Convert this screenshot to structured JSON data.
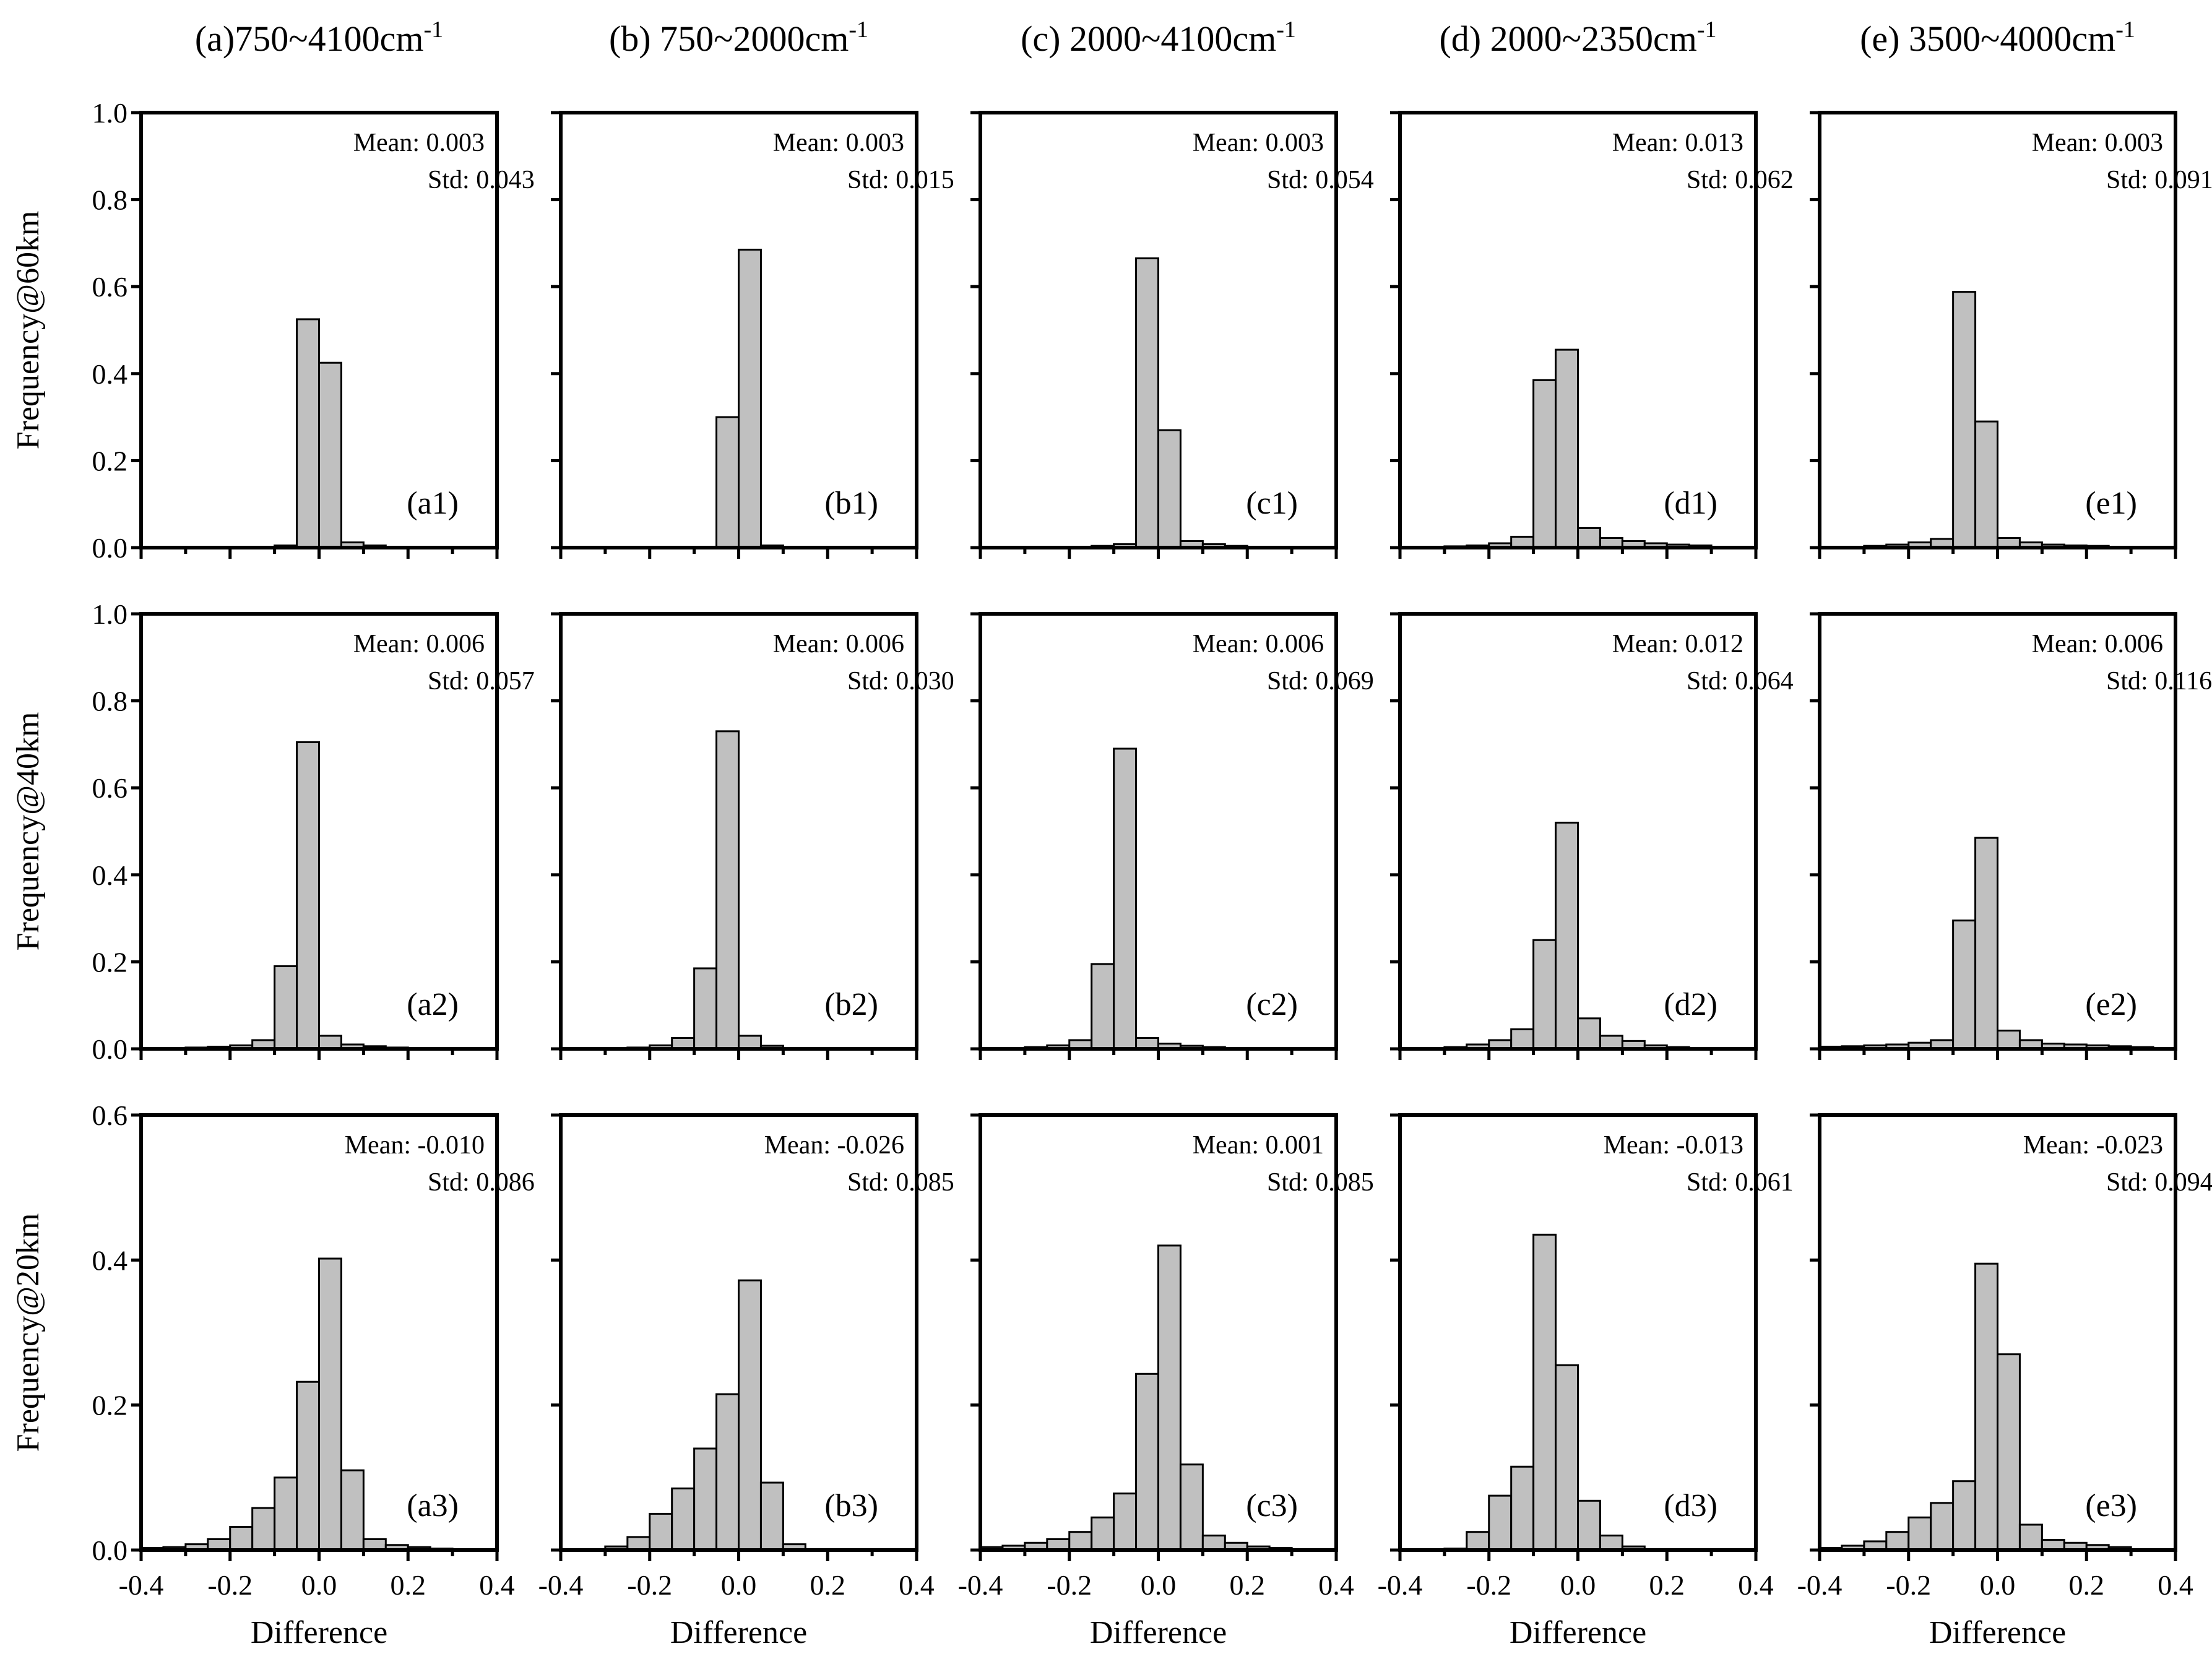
{
  "chart_data": {
    "type": "bar",
    "layout": "grid-3x5",
    "columns": [
      {
        "title": "(a)750~4100cm",
        "sup": "-1"
      },
      {
        "title": "(b) 750~2000cm",
        "sup": "-1"
      },
      {
        "title": "(c) 2000~4100cm",
        "sup": "-1"
      },
      {
        "title": "(d) 2000~2350cm",
        "sup": "-1"
      },
      {
        "title": "(e) 3500~4000cm",
        "sup": "-1"
      }
    ],
    "rows": [
      {
        "ylabel": "Frequency@60km",
        "ylim": [
          0,
          1.0
        ],
        "yticks": [
          "0.0",
          "0.2",
          "0.4",
          "0.6",
          "0.8",
          "1.0"
        ]
      },
      {
        "ylabel": "Frequency@40km",
        "ylim": [
          0,
          1.0
        ],
        "yticks": [
          "0.0",
          "0.2",
          "0.4",
          "0.6",
          "0.8",
          "1.0"
        ]
      },
      {
        "ylabel": "Frequency@20km",
        "ylim": [
          0,
          0.6
        ],
        "yticks": [
          "0.0",
          "0.2",
          "0.4",
          "0.6"
        ]
      }
    ],
    "xlabel": "Difference",
    "xlim": [
      -0.4,
      0.4
    ],
    "xticks": [
      "-0.4",
      "-0.2",
      "0.0",
      "0.2",
      "0.4"
    ],
    "bin_width": 0.05,
    "bin_centers": [
      -0.375,
      -0.325,
      -0.275,
      -0.225,
      -0.175,
      -0.125,
      -0.075,
      -0.025,
      0.025,
      0.075,
      0.125,
      0.175,
      0.225,
      0.275,
      0.325,
      0.375
    ],
    "panels": [
      [
        {
          "label": "(a1)",
          "mean": "Mean: 0.003",
          "std": "Std: 0.043",
          "values": [
            0,
            0,
            0,
            0,
            0,
            0,
            0.005,
            0.525,
            0.425,
            0.012,
            0.005,
            0,
            0,
            0,
            0,
            0
          ]
        },
        {
          "label": "(b1)",
          "mean": "Mean: 0.003",
          "std": "Std: 0.015",
          "values": [
            0,
            0,
            0,
            0,
            0,
            0,
            0.002,
            0.3,
            0.685,
            0.005,
            0,
            0,
            0,
            0,
            0,
            0
          ]
        },
        {
          "label": "(c1)",
          "mean": "Mean: 0.003",
          "std": "Std: 0.054",
          "values": [
            0,
            0,
            0,
            0,
            0.002,
            0.004,
            0.008,
            0.665,
            0.27,
            0.015,
            0.008,
            0.004,
            0,
            0,
            0,
            0
          ]
        },
        {
          "label": "(d1)",
          "mean": "Mean: 0.013",
          "std": "Std: 0.062",
          "values": [
            0,
            0,
            0.003,
            0.005,
            0.01,
            0.025,
            0.385,
            0.455,
            0.045,
            0.022,
            0.015,
            0.01,
            0.007,
            0.005,
            0,
            0
          ]
        },
        {
          "label": "(e1)",
          "mean": "Mean: 0.003",
          "std": "Std: 0.091",
          "values": [
            0,
            0,
            0.004,
            0.007,
            0.012,
            0.02,
            0.588,
            0.29,
            0.022,
            0.012,
            0.007,
            0.005,
            0.004,
            0,
            0,
            0
          ]
        }
      ],
      [
        {
          "label": "(a2)",
          "mean": "Mean: 0.006",
          "std": "Std: 0.057",
          "values": [
            0,
            0.002,
            0.003,
            0.005,
            0.008,
            0.02,
            0.19,
            0.705,
            0.03,
            0.01,
            0.006,
            0.003,
            0.002,
            0,
            0,
            0
          ]
        },
        {
          "label": "(b2)",
          "mean": "Mean: 0.006",
          "std": "Std: 0.030",
          "values": [
            0,
            0,
            0,
            0.003,
            0.008,
            0.025,
            0.185,
            0.73,
            0.03,
            0.007,
            0,
            0,
            0,
            0,
            0,
            0
          ]
        },
        {
          "label": "(c2)",
          "mean": "Mean: 0.006",
          "std": "Std: 0.069",
          "values": [
            0,
            0,
            0.004,
            0.008,
            0.02,
            0.195,
            0.69,
            0.025,
            0.012,
            0.007,
            0.004,
            0,
            0,
            0,
            0,
            0
          ]
        },
        {
          "label": "(d2)",
          "mean": "Mean: 0.012",
          "std": "Std: 0.064",
          "values": [
            0,
            0,
            0.004,
            0.01,
            0.02,
            0.045,
            0.25,
            0.52,
            0.07,
            0.03,
            0.018,
            0.008,
            0.004,
            0,
            0,
            0
          ]
        },
        {
          "label": "(e2)",
          "mean": "Mean: 0.006",
          "std": "Std: 0.116",
          "values": [
            0.005,
            0.006,
            0.008,
            0.01,
            0.014,
            0.02,
            0.295,
            0.485,
            0.042,
            0.02,
            0.012,
            0.01,
            0.008,
            0.006,
            0.004,
            0
          ]
        }
      ],
      [
        {
          "label": "(a3)",
          "mean": "Mean: -0.010",
          "std": "Std: 0.086",
          "values": [
            0.003,
            0.004,
            0.008,
            0.015,
            0.032,
            0.058,
            0.1,
            0.232,
            0.402,
            0.11,
            0.015,
            0.007,
            0.004,
            0.002,
            0,
            0
          ]
        },
        {
          "label": "(b3)",
          "mean": "Mean: -0.026",
          "std": "Std: 0.085",
          "values": [
            0,
            0,
            0.005,
            0.018,
            0.05,
            0.085,
            0.14,
            0.215,
            0.372,
            0.093,
            0.008,
            0,
            0,
            0,
            0,
            0
          ]
        },
        {
          "label": "(c3)",
          "mean": "Mean: 0.001",
          "std": "Std: 0.085",
          "values": [
            0.004,
            0.006,
            0.01,
            0.015,
            0.025,
            0.045,
            0.078,
            0.243,
            0.42,
            0.118,
            0.02,
            0.01,
            0.005,
            0.003,
            0,
            0
          ]
        },
        {
          "label": "(d3)",
          "mean": "Mean: -0.013",
          "std": "Std: 0.061",
          "values": [
            0,
            0,
            0.002,
            0.025,
            0.075,
            0.115,
            0.435,
            0.255,
            0.068,
            0.02,
            0.005,
            0,
            0,
            0,
            0,
            0
          ]
        },
        {
          "label": "(e3)",
          "mean": "Mean: -0.023",
          "std": "Std: 0.094",
          "values": [
            0.003,
            0.006,
            0.012,
            0.025,
            0.045,
            0.065,
            0.095,
            0.395,
            0.27,
            0.035,
            0.014,
            0.01,
            0.007,
            0.004,
            0,
            0
          ]
        }
      ]
    ]
  }
}
